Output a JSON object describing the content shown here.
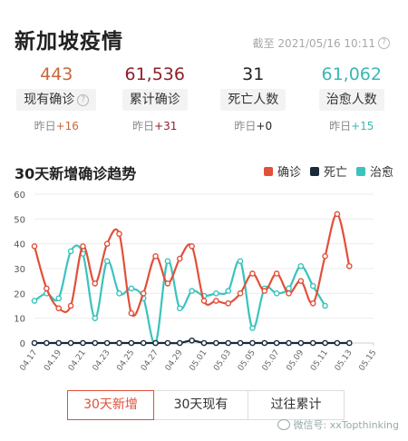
{
  "header": {
    "title": "新加坡疫情",
    "timestamp": "截至 2021/05/16 10:11"
  },
  "stats": [
    {
      "value": "443",
      "label": "现有确诊",
      "delta_prefix": "昨日",
      "delta": "+16",
      "color": "#c8673a",
      "delta_color": "#c8673a",
      "has_help": true
    },
    {
      "value": "61,536",
      "label": "累计确诊",
      "delta_prefix": "昨日",
      "delta": "+31",
      "color": "#8e1f2a",
      "delta_color": "#8e1f2a",
      "has_help": false
    },
    {
      "value": "31",
      "label": "死亡人数",
      "delta_prefix": "昨日",
      "delta": "+0",
      "color": "#222222",
      "delta_color": "#222222",
      "has_help": false
    },
    {
      "value": "61,062",
      "label": "治愈人数",
      "delta_prefix": "昨日",
      "delta": "+15",
      "color": "#3bb7b3",
      "delta_color": "#3bb7b3",
      "has_help": false
    }
  ],
  "chart_section": {
    "title": "30天新增确诊趋势"
  },
  "chart_data": {
    "type": "line",
    "x": [
      "04.17",
      "04.18",
      "04.19",
      "04.20",
      "04.21",
      "04.22",
      "04.23",
      "04.24",
      "04.25",
      "04.26",
      "04.27",
      "04.28",
      "04.29",
      "04.30",
      "05.01",
      "05.02",
      "05.03",
      "05.04",
      "05.05",
      "05.06",
      "05.07",
      "05.08",
      "05.09",
      "05.10",
      "05.11",
      "05.12",
      "05.13",
      "05.14",
      "05.15"
    ],
    "x_tick_labels": [
      "04.17",
      "04.19",
      "04.21",
      "04.23",
      "04.25",
      "04.27",
      "04.29",
      "05.01",
      "05.03",
      "05.05",
      "05.07",
      "05.09",
      "05.11",
      "05.13",
      "05.15"
    ],
    "series": [
      {
        "name": "确诊",
        "color": "#e1503a",
        "values": [
          39,
          22,
          14,
          15,
          39,
          24,
          40,
          44,
          12,
          20,
          35,
          24,
          34,
          39,
          17,
          17,
          16,
          20,
          28,
          21,
          28,
          20,
          25,
          16,
          35,
          52,
          31,
          null,
          null
        ]
      },
      {
        "name": "死亡",
        "color": "#1a2a3a",
        "values": [
          0,
          0,
          0,
          0,
          0,
          0,
          0,
          0,
          0,
          0,
          0,
          0,
          0,
          1,
          0,
          0,
          0,
          0,
          0,
          0,
          0,
          0,
          0,
          0,
          0,
          0,
          0,
          null,
          null
        ]
      },
      {
        "name": "治愈",
        "color": "#3bc3bd",
        "values": [
          17,
          20,
          18,
          37,
          36,
          10,
          33,
          20,
          22,
          18,
          0,
          33,
          14,
          21,
          19,
          20,
          21,
          33,
          6,
          22,
          20,
          22,
          31,
          23,
          15,
          null,
          null,
          null,
          null
        ]
      }
    ],
    "ylim": [
      0,
      60
    ],
    "yticks": [
      0,
      10,
      20,
      30,
      40,
      50,
      60
    ],
    "grid": true,
    "legend_position": "top-right"
  },
  "tabs": [
    {
      "label": "30天新增",
      "active": true
    },
    {
      "label": "30天现有",
      "active": false
    },
    {
      "label": "过往累计",
      "active": false
    }
  ],
  "watermark": "微信号: xxTopthinking"
}
